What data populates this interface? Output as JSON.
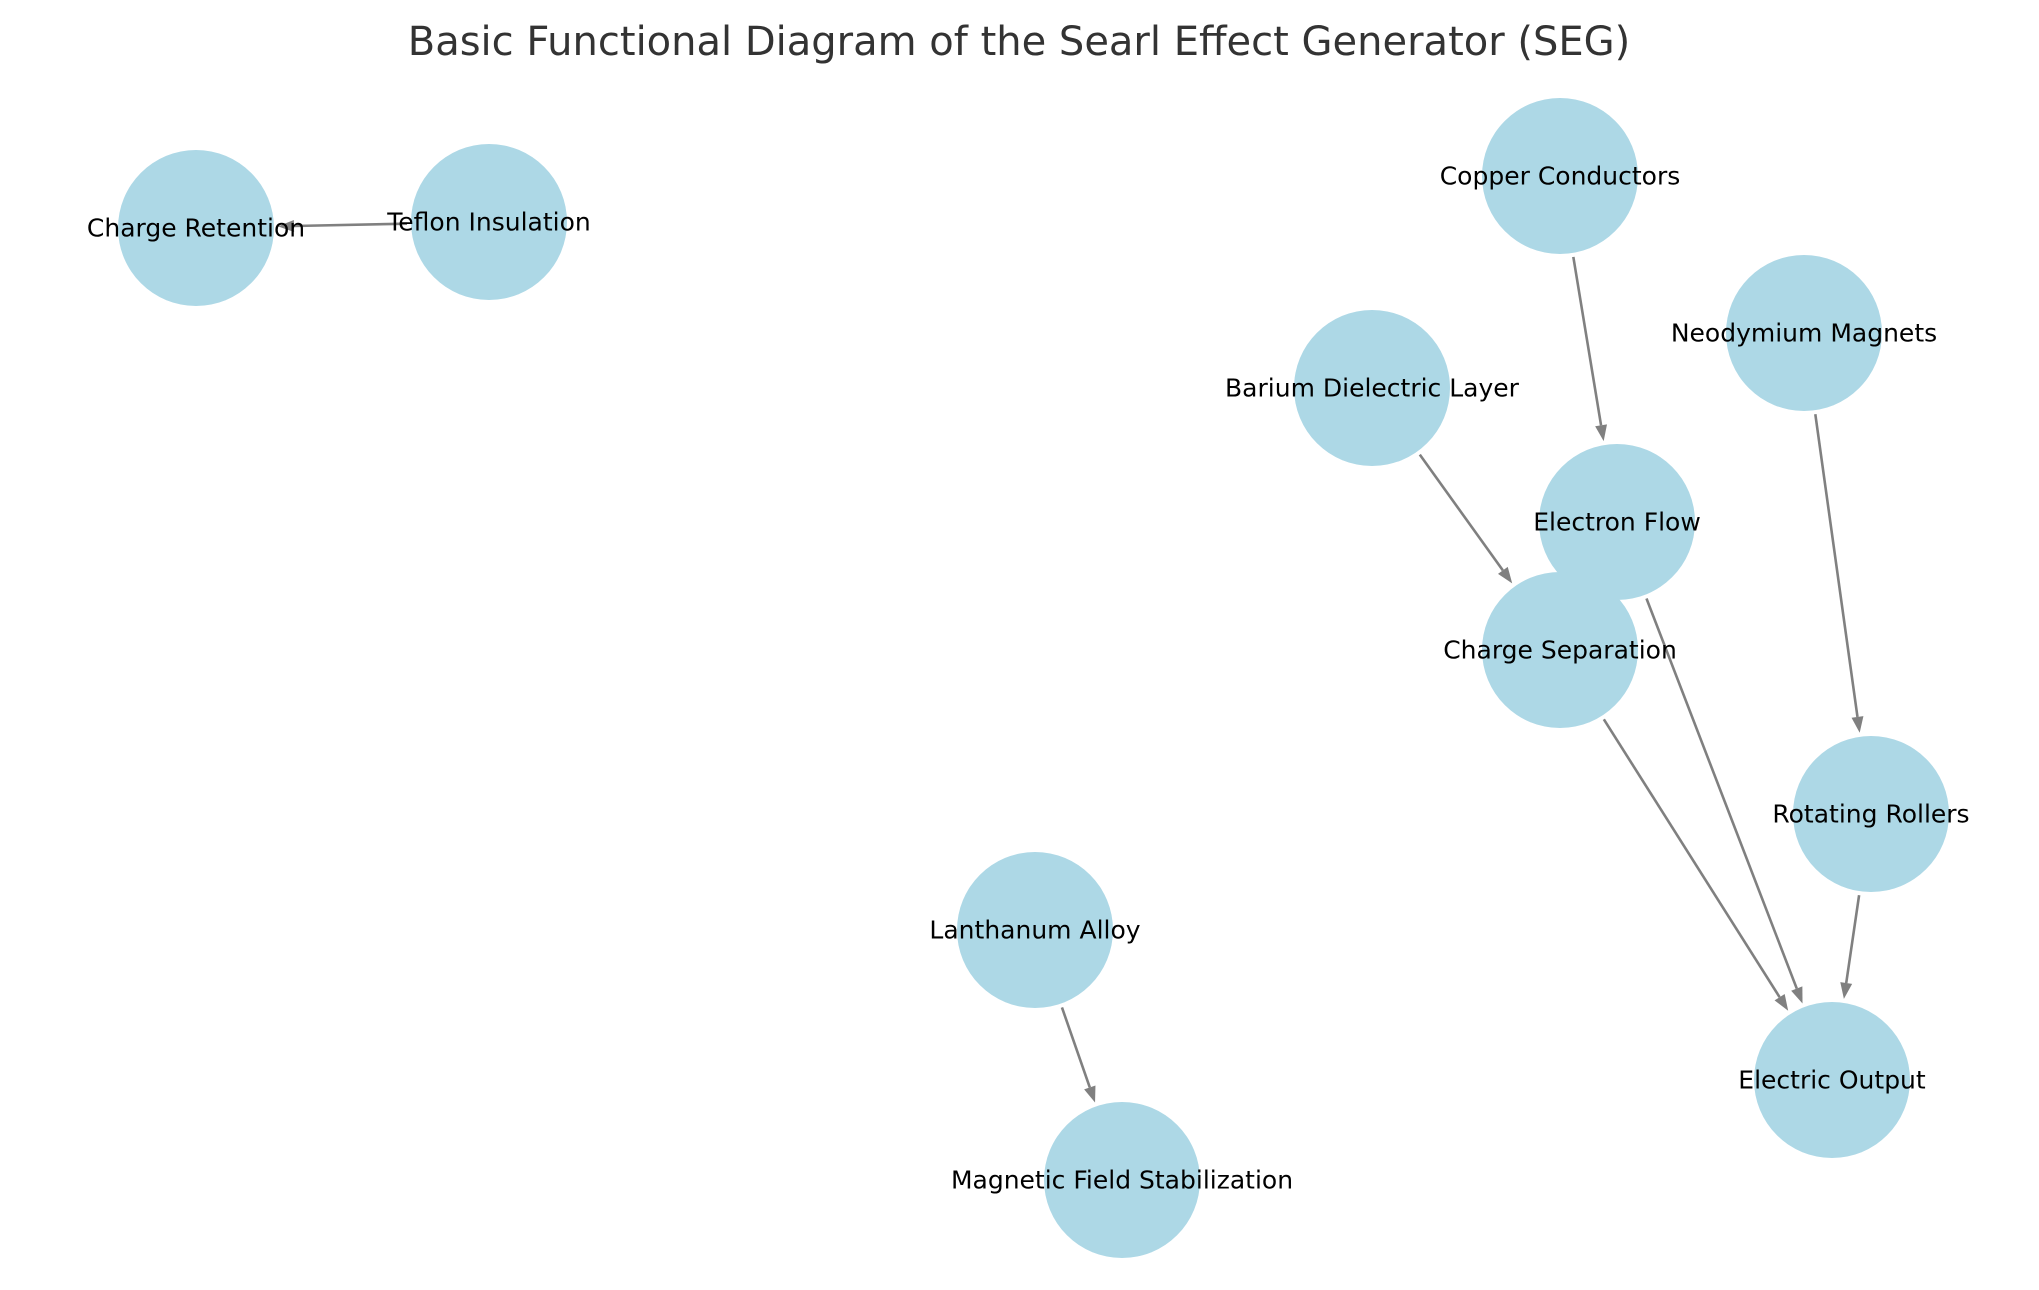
{
  "title": "Basic Functional Diagram of the Searl Effect Generator (SEG)",
  "style": {
    "node_color": "#add8e6",
    "edge_color": "#808080",
    "title_color": "#333333",
    "label_color": "#000000"
  },
  "nodes": [
    {
      "id": "charge-retention",
      "label": "Charge Retention"
    },
    {
      "id": "teflon-insulation",
      "label": "Teflon Insulation"
    },
    {
      "id": "copper-conductors",
      "label": "Copper Conductors"
    },
    {
      "id": "neodymium-magnets",
      "label": "Neodymium Magnets"
    },
    {
      "id": "barium-dielectric-layer",
      "label": "Barium Dielectric Layer"
    },
    {
      "id": "electron-flow",
      "label": "Electron Flow"
    },
    {
      "id": "charge-separation",
      "label": "Charge Separation"
    },
    {
      "id": "rotating-rollers",
      "label": "Rotating Rollers"
    },
    {
      "id": "lanthanum-alloy",
      "label": "Lanthanum Alloy"
    },
    {
      "id": "electric-output",
      "label": "Electric Output"
    },
    {
      "id": "magnetic-field-stabilization",
      "label": "Magnetic Field Stabilization"
    }
  ],
  "edges": [
    {
      "from": "teflon-insulation",
      "to": "charge-retention"
    },
    {
      "from": "copper-conductors",
      "to": "electron-flow"
    },
    {
      "from": "neodymium-magnets",
      "to": "rotating-rollers"
    },
    {
      "from": "barium-dielectric-layer",
      "to": "charge-separation"
    },
    {
      "from": "electron-flow",
      "to": "electric-output"
    },
    {
      "from": "charge-separation",
      "to": "electric-output"
    },
    {
      "from": "rotating-rollers",
      "to": "electric-output"
    },
    {
      "from": "lanthanum-alloy",
      "to": "magnetic-field-stabilization"
    }
  ]
}
